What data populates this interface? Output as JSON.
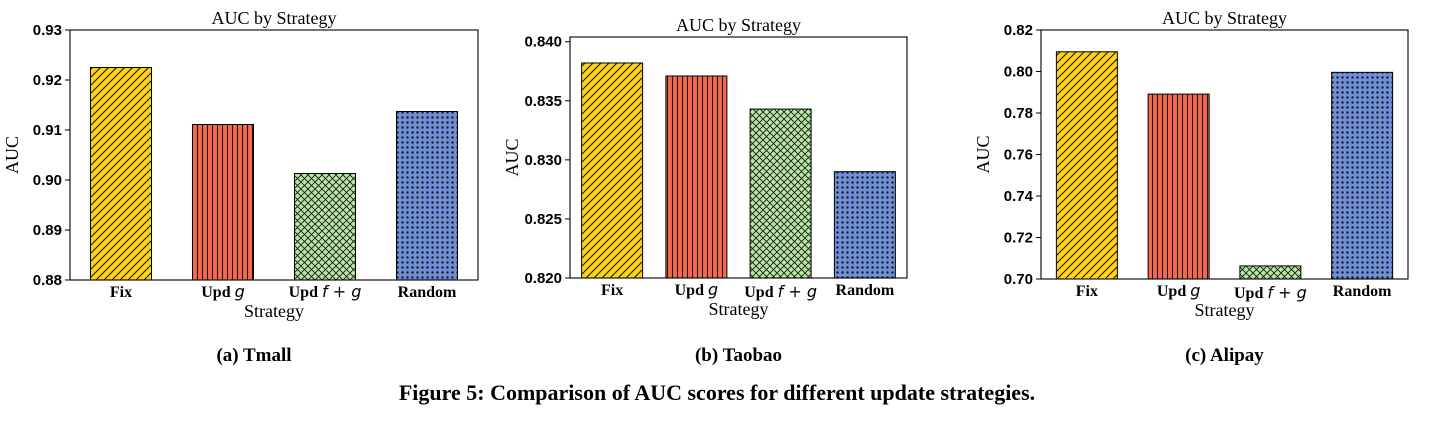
{
  "figure_caption": "Figure 5: Comparison of AUC scores for different update strategies.",
  "colors": {
    "fix": "#FFD21F",
    "upd_g": "#F4694F",
    "upd_fg": "#B5E8A0",
    "random": "#6E8FD9"
  },
  "chart_data": [
    {
      "type": "bar",
      "subcaption": "(a) Tmall",
      "title": "AUC by Strategy",
      "xlabel": "Strategy",
      "ylabel": "AUC",
      "categories": [
        "Fix",
        "Upd g",
        "Upd f + g",
        "Random"
      ],
      "values": [
        0.9225,
        0.9111,
        0.9013,
        0.9137
      ],
      "ylim": [
        0.88,
        0.93
      ],
      "yticks": [
        "0.88",
        "0.89",
        "0.90",
        "0.91",
        "0.92",
        "0.93"
      ],
      "grid": false
    },
    {
      "type": "bar",
      "subcaption": "(b) Taobao",
      "title": "AUC by Strategy",
      "xlabel": "Strategy",
      "ylabel": "AUC",
      "categories": [
        "Fix",
        "Upd g",
        "Upd f + g",
        "Random"
      ],
      "values": [
        0.8382,
        0.8371,
        0.8343,
        0.829
      ],
      "ylim": [
        0.82,
        0.8404
      ],
      "yticks": [
        "0.820",
        "0.825",
        "0.830",
        "0.835",
        "0.840"
      ],
      "grid": false
    },
    {
      "type": "bar",
      "subcaption": "(c) Alipay",
      "title": "AUC by Strategy",
      "xlabel": "Strategy",
      "ylabel": "AUC",
      "categories": [
        "Fix",
        "Upd g",
        "Upd f + g",
        "Random"
      ],
      "values": [
        0.8095,
        0.7891,
        0.7063,
        0.7996
      ],
      "ylim": [
        0.7,
        0.82
      ],
      "yticks": [
        "0.70",
        "0.72",
        "0.74",
        "0.76",
        "0.78",
        "0.80",
        "0.82"
      ],
      "grid": false
    }
  ]
}
